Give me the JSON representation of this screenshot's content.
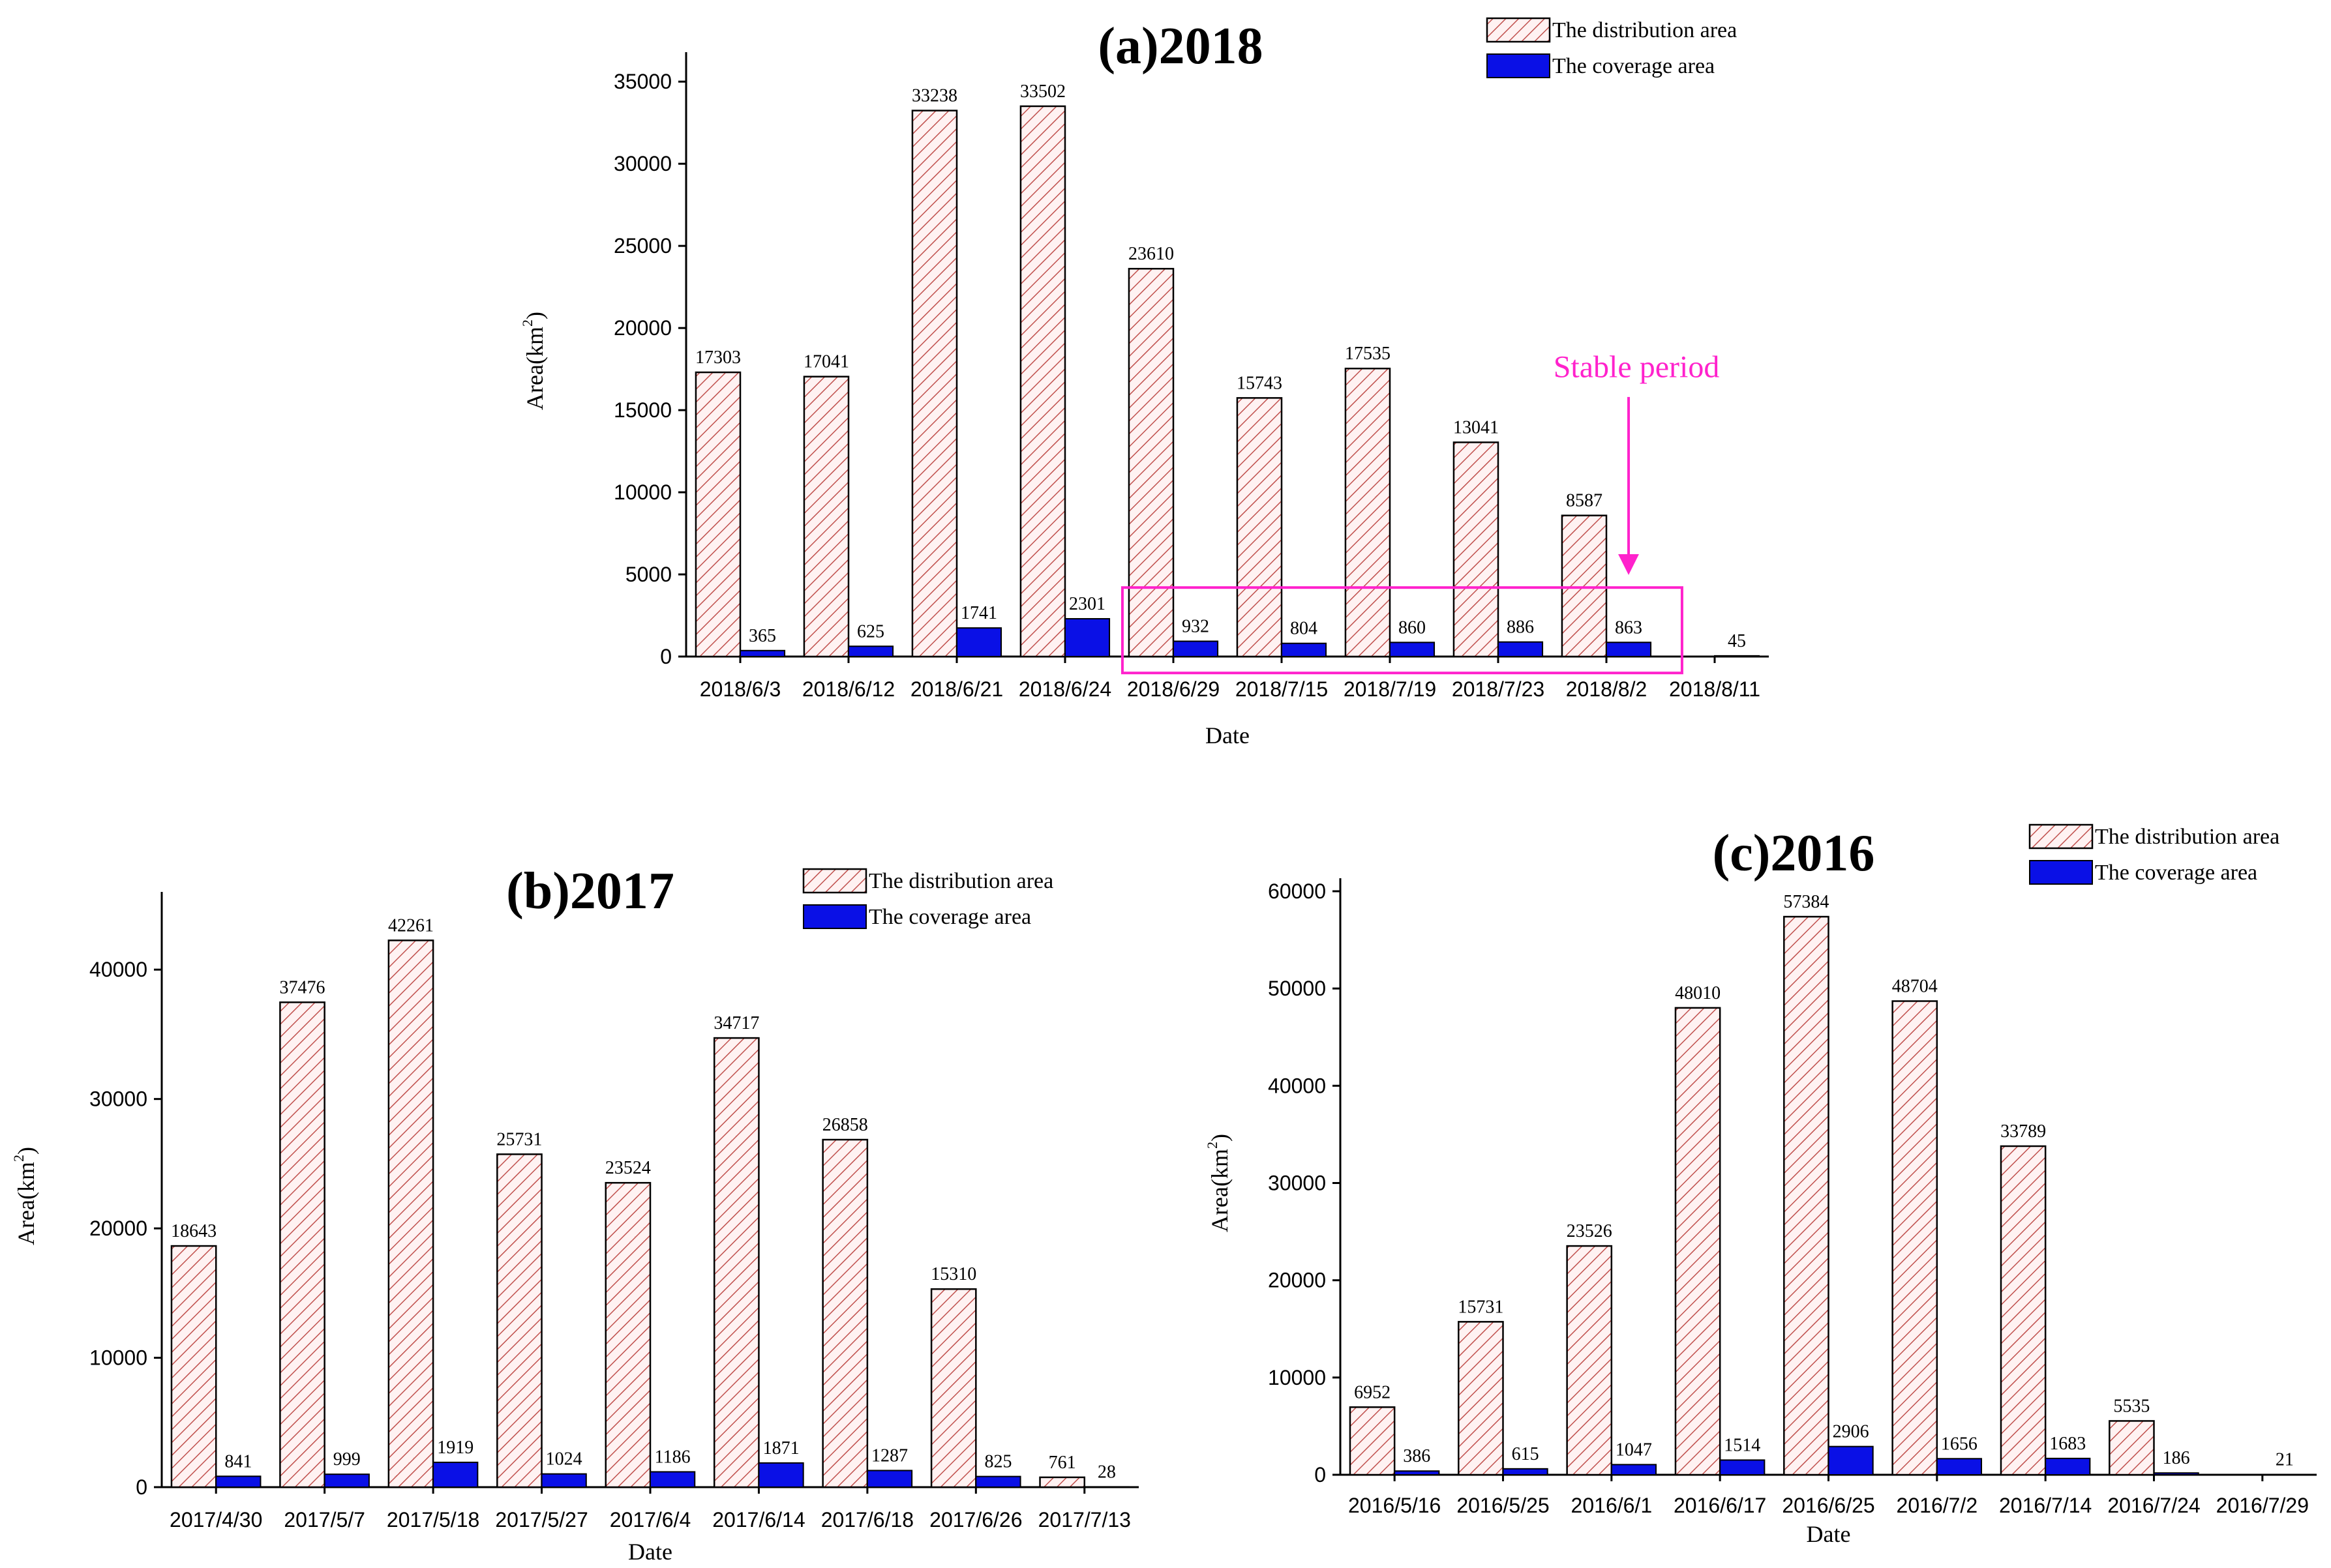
{
  "colors": {
    "distribution_hatch": "#c0504d",
    "distribution_fill": "#ffeeee",
    "coverage": "#0a10e6",
    "annotation": "#ff22cc"
  },
  "chart_data": [
    {
      "id": "a",
      "type": "bar",
      "title": "(a)2018",
      "xlabel": "Date",
      "ylabel": "Area(km2)",
      "ylim": [
        0,
        36000
      ],
      "yticks": [
        0,
        5000,
        10000,
        15000,
        20000,
        25000,
        30000,
        35000
      ],
      "categories": [
        "2018/6/3",
        "2018/6/12",
        "2018/6/21",
        "2018/6/24",
        "2018/6/29",
        "2018/7/15",
        "2018/7/19",
        "2018/7/23",
        "2018/8/2",
        "2018/8/11"
      ],
      "series": [
        {
          "name": "The distribution area",
          "values": [
            17303,
            17041,
            33238,
            33502,
            23610,
            15743,
            17535,
            13041,
            8587,
            null
          ]
        },
        {
          "name": "The coverage area",
          "values": [
            365,
            625,
            1741,
            2301,
            932,
            804,
            860,
            886,
            863,
            45
          ]
        }
      ],
      "legend": "top-right",
      "annotation": {
        "text": "Stable period",
        "start_category": 4,
        "end_category": 9
      }
    },
    {
      "id": "b",
      "type": "bar",
      "title": "(b)2017",
      "xlabel": "Date",
      "ylabel": "Area(km2)",
      "ylim": [
        0,
        45000
      ],
      "yticks": [
        0,
        10000,
        20000,
        30000,
        40000
      ],
      "categories": [
        "2017/4/30",
        "2017/5/7",
        "2017/5/18",
        "2017/5/27",
        "2017/6/4",
        "2017/6/14",
        "2017/6/18",
        "2017/6/26",
        "2017/7/13"
      ],
      "series": [
        {
          "name": "The distribution area",
          "values": [
            18643,
            37476,
            42261,
            25731,
            23524,
            34717,
            26858,
            15310,
            761
          ]
        },
        {
          "name": "The coverage area",
          "values": [
            841,
            999,
            1919,
            1024,
            1186,
            1871,
            1287,
            825,
            28
          ]
        }
      ],
      "legend": "top-right"
    },
    {
      "id": "c",
      "type": "bar",
      "title": "(c)2016",
      "xlabel": "Date",
      "ylabel": "Area(km2)",
      "ylim": [
        0,
        60000
      ],
      "yticks": [
        0,
        10000,
        20000,
        30000,
        40000,
        50000,
        60000
      ],
      "categories": [
        "2016/5/16",
        "2016/5/25",
        "2016/6/1",
        "2016/6/17",
        "2016/6/25",
        "2016/7/2",
        "2016/7/14",
        "2016/7/24",
        "2016/7/29"
      ],
      "series": [
        {
          "name": "The distribution area",
          "values": [
            6952,
            15731,
            23526,
            48010,
            57384,
            48704,
            33789,
            5535,
            null
          ]
        },
        {
          "name": "The coverage area",
          "values": [
            386,
            615,
            1047,
            1514,
            2906,
            1656,
            1683,
            186,
            21
          ]
        }
      ],
      "legend": "top-right"
    }
  ]
}
